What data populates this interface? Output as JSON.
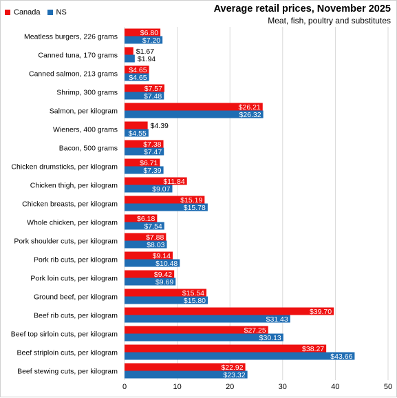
{
  "legend": {
    "canada_label": "Canada",
    "ns_label": "NS"
  },
  "colors": {
    "canada": "#ee1111",
    "ns": "#1f6db3",
    "grid": "#d9d9d9",
    "text": "#000000"
  },
  "chart_data": {
    "type": "bar",
    "orientation": "horizontal",
    "title": "Average retail prices, November 2025",
    "subtitle": "Meat,  fish, poultry and substitutes",
    "xlabel": "",
    "ylabel": "",
    "xlim": [
      0,
      50
    ],
    "xticks": [
      0,
      10,
      20,
      30,
      40,
      50
    ],
    "grid": true,
    "legend_position": "top-left",
    "categories": [
      "Meatless burgers, 226 grams",
      "Canned tuna, 170 grams",
      "Canned salmon, 213 grams",
      "Shrimp, 300 grams",
      "Salmon, per kilogram",
      "Wieners, 400 grams",
      "Bacon, 500 grams",
      "Chicken drumsticks, per kilogram",
      "Chicken thigh, per kilogram",
      "Chicken breasts, per kilogram",
      "Whole chicken, per kilogram",
      "Pork shoulder cuts, per kilogram",
      "Pork rib cuts, per kilogram",
      "Pork loin cuts, per kilogram",
      "Ground beef, per kilogram",
      "Beef rib cuts, per kilogram",
      "Beef top sirloin cuts, per kilogram",
      "Beef striploin cuts, per kilogram",
      "Beef stewing cuts, per kilogram"
    ],
    "series": [
      {
        "name": "Canada",
        "values": [
          6.8,
          1.67,
          4.65,
          7.57,
          26.21,
          4.39,
          7.38,
          6.71,
          11.84,
          15.19,
          6.18,
          7.88,
          9.14,
          9.42,
          15.54,
          39.7,
          27.25,
          38.27,
          22.92
        ],
        "labels": [
          "$6.80",
          "$1.67",
          "$4.65",
          "$7.57",
          "$26.21",
          "$4.39",
          "$7.38",
          "$6.71",
          "$11.84",
          "$15.19",
          "$6.18",
          "$7.88",
          "$9.14",
          "$9.42",
          "$15.54",
          "$39.70",
          "$27.25",
          "$38.27",
          "$22.92"
        ]
      },
      {
        "name": "NS",
        "values": [
          7.2,
          1.94,
          4.65,
          7.48,
          26.32,
          4.55,
          7.47,
          7.39,
          9.07,
          15.78,
          7.54,
          8.03,
          10.48,
          9.69,
          15.8,
          31.43,
          30.13,
          43.66,
          23.32
        ],
        "labels": [
          "$7.20",
          "$1.94",
          "$4.65",
          "$7.48",
          "$26.32",
          "$4.55",
          "$7.47",
          "$7.39",
          "$9.07",
          "$15.78",
          "$7.54",
          "$8.03",
          "$10.48",
          "$9.69",
          "$15.80",
          "$31.43",
          "$30.13",
          "$43.66",
          "$23.32"
        ]
      }
    ]
  }
}
